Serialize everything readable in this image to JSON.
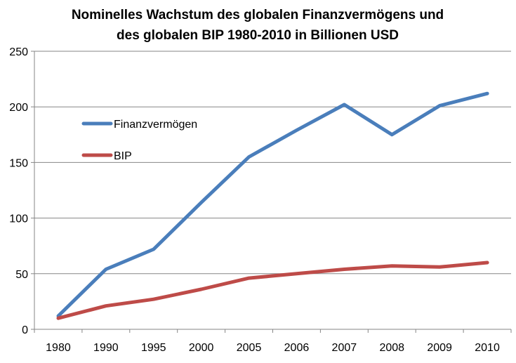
{
  "chart_data": {
    "type": "line",
    "title_lines": [
      "Nominelles Wachstum des globalen Finanzvermögens und",
      "des globalen BIP 1980-2010 in Billionen USD"
    ],
    "categories": [
      "1980",
      "1990",
      "1995",
      "2000",
      "2005",
      "2006",
      "2007",
      "2008",
      "2009",
      "2010"
    ],
    "series": [
      {
        "name": "Finanzvermögen",
        "color": "#4a7ebb",
        "values": [
          12,
          54,
          72,
          114,
          155,
          179,
          202,
          175,
          201,
          212
        ]
      },
      {
        "name": "BIP",
        "color": "#be4b48",
        "values": [
          10,
          21,
          27,
          36,
          46,
          50,
          54,
          57,
          56,
          60
        ]
      }
    ],
    "ylim": [
      0,
      250
    ],
    "yticks": [
      "0",
      "50",
      "100",
      "150",
      "200",
      "250"
    ],
    "grid": true,
    "legend_placement": "upper-left inside plot"
  }
}
